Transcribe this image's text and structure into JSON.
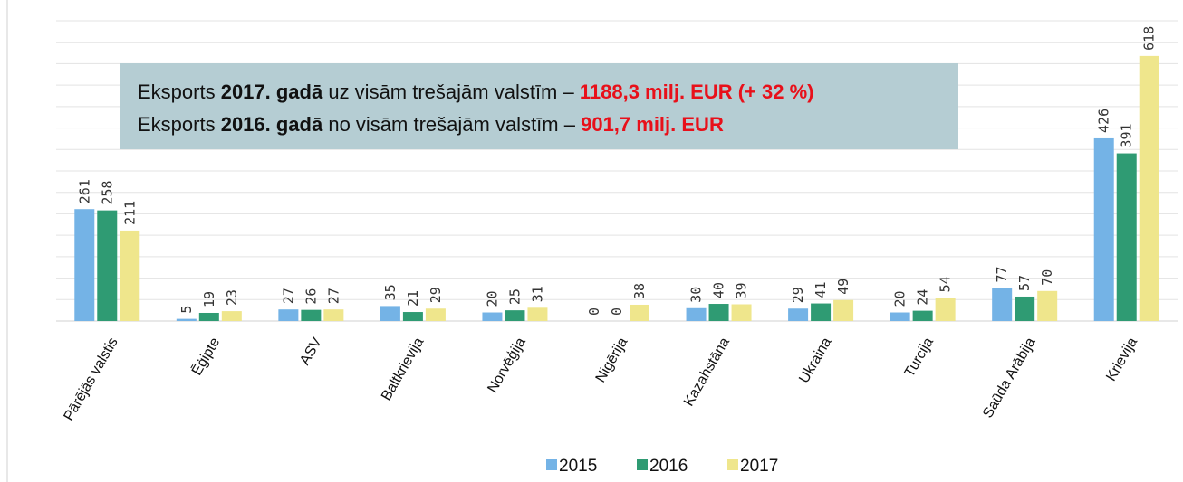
{
  "chart_data": {
    "type": "bar",
    "categories": [
      "Pārējās valstis",
      "Ēģipte",
      "ASV",
      "Baltkrievija",
      "Norvēģija",
      "Nigērija",
      "Kazahstāna",
      "Ukraina",
      "Turcija",
      "Saūda Arābija",
      "Krievija"
    ],
    "series": [
      {
        "name": "2015",
        "color": "#74b3e6",
        "values": [
          261,
          5,
          27,
          35,
          20,
          0,
          30,
          29,
          20,
          77,
          426
        ]
      },
      {
        "name": "2016",
        "color": "#2f9b73",
        "values": [
          258,
          19,
          26,
          21,
          25,
          0,
          40,
          41,
          24,
          57,
          391
        ]
      },
      {
        "name": "2017",
        "color": "#efe68c",
        "values": [
          211,
          23,
          27,
          29,
          31,
          38,
          39,
          49,
          54,
          70,
          618
        ]
      }
    ],
    "ylim": [
      0,
      700
    ],
    "yticks": [
      0,
      50,
      100,
      150,
      200,
      250,
      300,
      350,
      400,
      450,
      500,
      550,
      600,
      650,
      700
    ],
    "grid": true,
    "legend": "bottom",
    "annotation": [
      [
        {
          "text": "Eksports "
        },
        {
          "text": "2017. gadā",
          "bold": true
        },
        {
          "text": " uz visām trešajām valstīm – "
        },
        {
          "text": "1188,3 milj. EUR (+ 32 %)",
          "bold": true,
          "color": "#e8101a"
        }
      ],
      [
        {
          "text": "Eksports "
        },
        {
          "text": "2016. gadā",
          "bold": true
        },
        {
          "text": " no visām trešajām valstīm – "
        },
        {
          "text": "901,7 milj. EUR",
          "bold": true,
          "color": "#e8101a"
        }
      ]
    ]
  }
}
